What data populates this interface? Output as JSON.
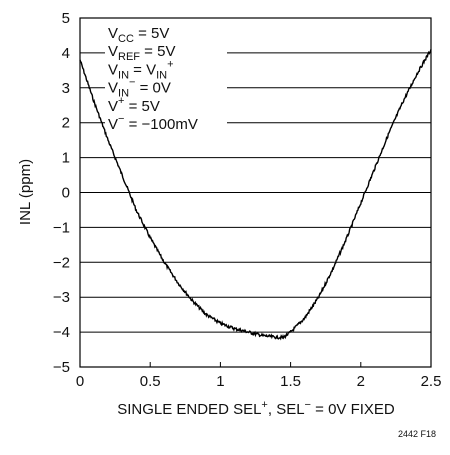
{
  "chart_data": {
    "type": "line",
    "xlabel": {
      "main": "SINGLE ENDED SEL",
      "sup1": "+",
      "rest": ", SEL",
      "sup2": "−",
      "tail": " = 0V FIXED"
    },
    "ylabel": "INL (ppm)",
    "xlim": [
      0,
      2.5
    ],
    "ylim": [
      -5,
      5
    ],
    "x_ticks": [
      0,
      0.5,
      1,
      1.5,
      2,
      2.5
    ],
    "x_tick_labels": [
      "0",
      "0.5",
      "1",
      "1.5",
      "2",
      "2.5"
    ],
    "y_ticks": [
      5,
      4,
      3,
      2,
      1,
      0,
      -1,
      -2,
      -3,
      -4,
      -5
    ],
    "y_tick_labels": [
      "5",
      "4",
      "3",
      "2",
      "1",
      "0",
      "−1",
      "−2",
      "−3",
      "−4",
      "−5"
    ],
    "grid": "horizontal",
    "series": [
      {
        "color": "#000000",
        "x": [
          0,
          0.1,
          0.2,
          0.3,
          0.4,
          0.5,
          0.6,
          0.7,
          0.8,
          0.9,
          1.0,
          1.1,
          1.2,
          1.3,
          1.4,
          1.45,
          1.5,
          1.6,
          1.7,
          1.8,
          1.9,
          2.0,
          2.1,
          2.2,
          2.3,
          2.4,
          2.5
        ],
        "y": [
          3.8,
          2.6,
          1.5,
          0.5,
          -0.5,
          -1.3,
          -2.0,
          -2.6,
          -3.1,
          -3.5,
          -3.75,
          -3.9,
          -4.0,
          -4.1,
          -4.15,
          -4.15,
          -4.0,
          -3.6,
          -3.0,
          -2.2,
          -1.3,
          -0.3,
          0.7,
          1.7,
          2.6,
          3.4,
          4.1
        ]
      }
    ],
    "legend_lines": [
      {
        "main": "V",
        "sub": "CC",
        "rest": " = 5V",
        "sup": "",
        "tail": ""
      },
      {
        "main": "V",
        "sub": "REF",
        "rest": " = 5V",
        "sup": "",
        "tail": ""
      },
      {
        "main": "V",
        "sub": "IN",
        "rest": " = V",
        "sub2": "IN",
        "sup": "+",
        "tail": ""
      },
      {
        "main": "V",
        "sub": "IN",
        "sup": "−",
        "rest": " = 0V",
        "tail": ""
      },
      {
        "main": "V",
        "sub": "",
        "sup": "+",
        "rest": " = 5V",
        "tail": ""
      },
      {
        "main": "V",
        "sub": "",
        "sup": "−",
        "rest": " = −100mV",
        "tail": ""
      }
    ],
    "figure_id": "2442 F18"
  }
}
